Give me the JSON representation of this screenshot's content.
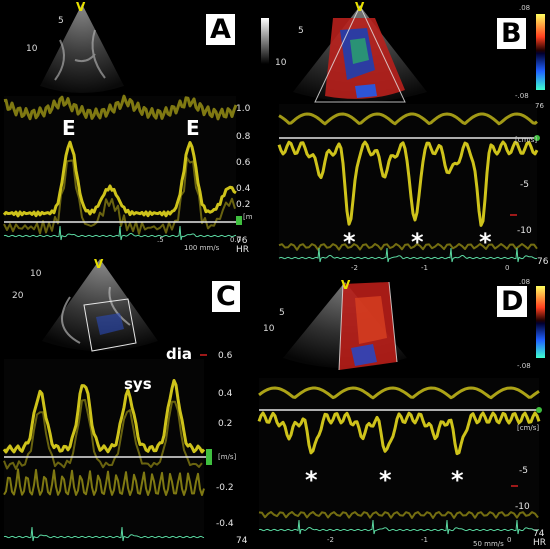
{
  "panels": {
    "A": {
      "label": "A",
      "wave_labels": [
        "E",
        "E"
      ],
      "y_ticks": [
        "1.0",
        "0.8",
        "0.6",
        "0.4",
        "0.2"
      ],
      "unit": "[m/s]",
      "time_ticks": [
        ".5",
        "0.0"
      ],
      "sweep": "100 mm/s",
      "hr_value": "76",
      "hr_label": "HR",
      "depth_marks": [
        "5",
        "10"
      ],
      "probe_mark": "V"
    },
    "B": {
      "label": "B",
      "color_scale_top": ".08",
      "color_scale_bottom": "-.08",
      "color_scale_value": "76",
      "unit": "[cm/s]",
      "y_ticks": [
        "-5",
        "-10"
      ],
      "time_ticks": [
        "-2",
        "-1",
        "0"
      ],
      "stars": [
        "*",
        "*",
        "*"
      ],
      "hr_value": "76",
      "probe_mark": "V",
      "depth_marks": [
        "5",
        "10"
      ]
    },
    "C": {
      "label": "C",
      "wave_labels": [
        "dia",
        "sys"
      ],
      "y_ticks": [
        "0.6",
        "0.4",
        "0.2",
        "-0.2",
        "-0.4"
      ],
      "unit": "[m/s]",
      "hr_value": "74",
      "depth_marks": [
        "10",
        "20"
      ],
      "probe_mark": "V"
    },
    "D": {
      "label": "D",
      "color_scale_top": ".08",
      "color_scale_bottom": "-.08",
      "unit": "[cm/s]",
      "y_ticks": [
        "-5",
        "-10"
      ],
      "time_ticks": [
        "-2",
        "-1",
        "0"
      ],
      "stars": [
        "*",
        "*",
        "*"
      ],
      "sweep": "50 mm/s",
      "hr_value": "74",
      "hr_label": "HR",
      "depth_marks": [
        "5",
        "10"
      ],
      "probe_mark": "V"
    }
  },
  "colors": {
    "doppler_yellow": "#e4d81e",
    "baseline": "#e6e6e6",
    "ecg_green": "#5ad7a0",
    "marker_green": "#3fbf3f"
  }
}
